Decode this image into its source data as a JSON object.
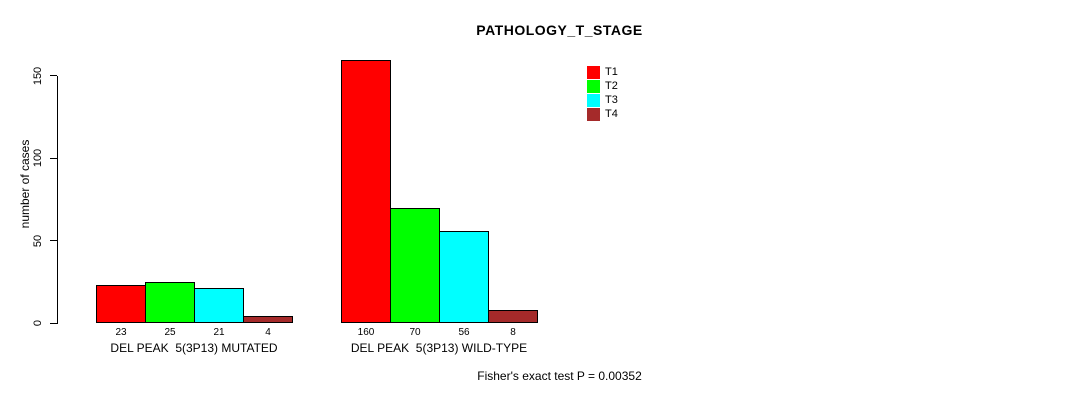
{
  "chart_data": {
    "type": "bar",
    "title": "PATHOLOGY_T_STAGE",
    "ylabel": "number of cases",
    "xlabel": "",
    "categories": [
      "DEL PEAK  5(3P13) MUTATED",
      "DEL PEAK  5(3P13) WILD-TYPE"
    ],
    "series": [
      {
        "name": "T1",
        "color": "#FF0000",
        "values": [
          23,
          160
        ]
      },
      {
        "name": "T2",
        "color": "#00FF00",
        "values": [
          25,
          70
        ]
      },
      {
        "name": "T3",
        "color": "#00FFFF",
        "values": [
          21,
          56
        ]
      },
      {
        "name": "T4",
        "color": "#A52A2A",
        "values": [
          4,
          8
        ]
      }
    ],
    "yticks": [
      0,
      50,
      100,
      150
    ],
    "ylim": [
      0,
      160
    ],
    "grid": false,
    "bar_value_labels": true,
    "legend_position": "top-right-inside",
    "annotation": "Fisher's exact test P = 0.00352",
    "axis_color": "#000000",
    "background_color": "#FFFFFF"
  }
}
